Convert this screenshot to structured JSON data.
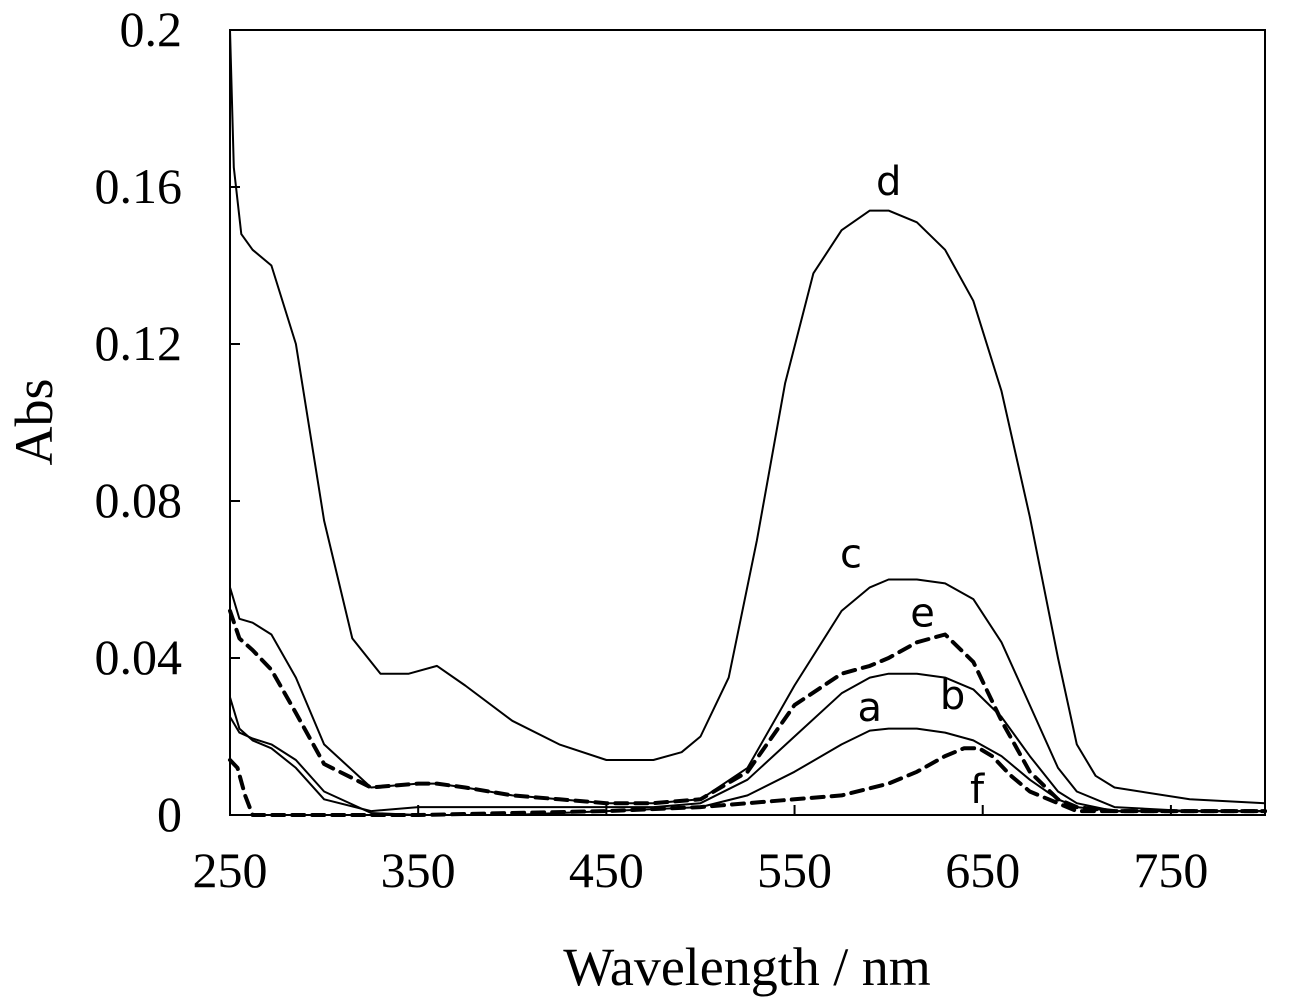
{
  "chart_data": {
    "type": "line",
    "title": "",
    "xlabel": "Wavelength / nm",
    "ylabel": "Abs",
    "xlim": [
      250,
      800
    ],
    "ylim": [
      0,
      0.2
    ],
    "x_ticks": [
      250,
      350,
      450,
      550,
      650,
      750
    ],
    "x_tick_labels": [
      "250",
      "350",
      "450",
      "550",
      "650",
      "750"
    ],
    "y_ticks": [
      0,
      0.04,
      0.08,
      0.12,
      0.16,
      0.2
    ],
    "y_tick_labels": [
      "0",
      "0.04",
      "0.08",
      "0.12",
      "0.16",
      "0.2"
    ],
    "grid": false,
    "legend": "none",
    "series": [
      {
        "name": "a",
        "style": "solid",
        "label_at": [
          590,
          0.024
        ],
        "x": [
          250,
          255,
          262,
          272,
          285,
          300,
          325,
          350,
          375,
          400,
          425,
          450,
          475,
          500,
          525,
          550,
          575,
          590,
          600,
          615,
          630,
          645,
          660,
          675,
          690,
          700,
          720,
          760,
          800
        ],
        "y": [
          0.025,
          0.021,
          0.0195,
          0.018,
          0.014,
          0.006,
          0.0005,
          0.0,
          0.0,
          0.0,
          0.0005,
          0.001,
          0.0015,
          0.002,
          0.005,
          0.011,
          0.018,
          0.0215,
          0.022,
          0.022,
          0.021,
          0.019,
          0.015,
          0.009,
          0.004,
          0.002,
          0.001,
          0.001,
          0.001
        ]
      },
      {
        "name": "b",
        "style": "solid",
        "label_at": [
          634,
          0.027
        ],
        "x": [
          250,
          255,
          262,
          272,
          285,
          300,
          325,
          350,
          375,
          400,
          425,
          450,
          475,
          500,
          525,
          550,
          575,
          590,
          600,
          615,
          630,
          645,
          660,
          675,
          690,
          700,
          720,
          760,
          800
        ],
        "y": [
          0.03,
          0.022,
          0.019,
          0.017,
          0.012,
          0.004,
          0.001,
          0.002,
          0.002,
          0.002,
          0.002,
          0.002,
          0.002,
          0.003,
          0.009,
          0.02,
          0.031,
          0.035,
          0.036,
          0.036,
          0.035,
          0.032,
          0.025,
          0.015,
          0.006,
          0.003,
          0.001,
          0.001,
          0.001
        ]
      },
      {
        "name": "c",
        "style": "solid",
        "label_at": [
          580,
          0.063
        ],
        "x": [
          250,
          255,
          262,
          272,
          285,
          300,
          325,
          350,
          360,
          375,
          400,
          425,
          450,
          475,
          500,
          525,
          550,
          575,
          590,
          600,
          615,
          630,
          645,
          660,
          675,
          690,
          700,
          720,
          760,
          800
        ],
        "y": [
          0.058,
          0.05,
          0.049,
          0.046,
          0.035,
          0.018,
          0.007,
          0.008,
          0.008,
          0.007,
          0.005,
          0.004,
          0.003,
          0.003,
          0.004,
          0.012,
          0.033,
          0.052,
          0.058,
          0.06,
          0.06,
          0.059,
          0.055,
          0.044,
          0.028,
          0.012,
          0.006,
          0.002,
          0.001,
          0.001
        ]
      },
      {
        "name": "d",
        "style": "solid",
        "label_at": [
          600,
          0.158
        ],
        "x": [
          250,
          252,
          256,
          262,
          272,
          285,
          300,
          315,
          330,
          345,
          360,
          375,
          400,
          425,
          450,
          475,
          490,
          500,
          515,
          530,
          545,
          560,
          575,
          590,
          600,
          615,
          630,
          645,
          660,
          675,
          690,
          700,
          710,
          720,
          760,
          800
        ],
        "y": [
          0.2,
          0.165,
          0.148,
          0.144,
          0.14,
          0.12,
          0.075,
          0.045,
          0.036,
          0.036,
          0.038,
          0.033,
          0.024,
          0.018,
          0.014,
          0.014,
          0.016,
          0.02,
          0.035,
          0.07,
          0.11,
          0.138,
          0.149,
          0.154,
          0.154,
          0.151,
          0.144,
          0.131,
          0.108,
          0.076,
          0.04,
          0.018,
          0.01,
          0.007,
          0.004,
          0.003
        ]
      },
      {
        "name": "e",
        "style": "dashed",
        "label_at": [
          618,
          0.048
        ],
        "x": [
          250,
          255,
          262,
          272,
          285,
          300,
          325,
          350,
          360,
          375,
          400,
          425,
          450,
          475,
          500,
          525,
          550,
          575,
          590,
          600,
          615,
          630,
          645,
          660,
          675,
          690,
          700,
          720,
          760,
          800
        ],
        "y": [
          0.052,
          0.045,
          0.042,
          0.037,
          0.026,
          0.013,
          0.007,
          0.008,
          0.008,
          0.007,
          0.005,
          0.004,
          0.003,
          0.003,
          0.004,
          0.011,
          0.028,
          0.036,
          0.038,
          0.04,
          0.044,
          0.046,
          0.039,
          0.024,
          0.011,
          0.004,
          0.002,
          0.001,
          0.001,
          0.001
        ]
      },
      {
        "name": "f",
        "style": "dashed",
        "label_at": [
          647,
          0.003
        ],
        "x": [
          250,
          254,
          258,
          262,
          270,
          300,
          350,
          400,
          450,
          500,
          525,
          550,
          575,
          600,
          615,
          630,
          640,
          648,
          655,
          665,
          675,
          690,
          700,
          720,
          760,
          800
        ],
        "y": [
          0.014,
          0.012,
          0.005,
          0.0,
          0.0,
          0.0,
          0.0,
          0.0005,
          0.001,
          0.002,
          0.003,
          0.004,
          0.005,
          0.008,
          0.011,
          0.015,
          0.017,
          0.017,
          0.015,
          0.01,
          0.006,
          0.003,
          0.001,
          0.001,
          0.001,
          0.001
        ]
      }
    ]
  }
}
